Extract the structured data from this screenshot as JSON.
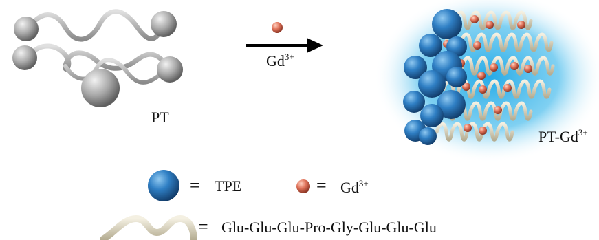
{
  "left_label": "PT",
  "arrow_label": {
    "base": "Gd",
    "sup": "3+"
  },
  "right_label": {
    "base": "PT-Gd",
    "sup": "3+"
  },
  "legend": {
    "equals": "=",
    "tpe": "TPE",
    "gd": {
      "base": "Gd",
      "sup": "3+"
    },
    "peptide": "Glu-Glu-Glu-Pro-Gly-Glu-Glu-Glu"
  },
  "colors": {
    "tpe_sphere": "#2f7fc4",
    "gd_ion": "#e0735a",
    "glow": "#2fb2e8",
    "pt_sphere": "#b0b0b0",
    "ribbon": "#d8d2be"
  }
}
